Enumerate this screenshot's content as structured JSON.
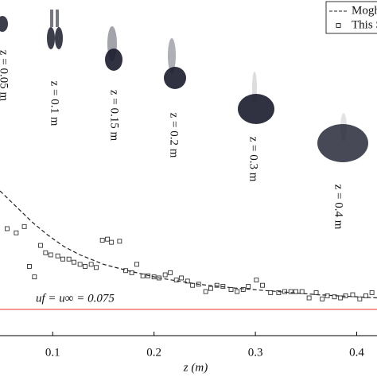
{
  "chart_data": {
    "type": "scatter",
    "xlabel": "z (m)",
    "xlim": [
      0.048,
      0.42
    ],
    "ylim": [
      0.05,
      0.37
    ],
    "xticks": [
      0.1,
      0.2,
      0.3,
      0.4
    ],
    "hline": {
      "value": 0.075,
      "color": "#e8332a"
    },
    "annotation": "uf = u∞ = 0.075",
    "plume_labels": [
      "z = 0.05 m",
      "z = 0.1 m",
      "z = 0.15 m",
      "z = 0.2 m",
      "z = 0.3 m",
      "z = 0.4 m"
    ],
    "series": [
      {
        "name": "Mogha",
        "type": "line",
        "color": "#222",
        "x": [
          0.048,
          0.064,
          0.08,
          0.095,
          0.111,
          0.127,
          0.15,
          0.174,
          0.205,
          0.244,
          0.284,
          0.323,
          0.362,
          0.42
        ],
        "values": [
          0.188,
          0.173,
          0.158,
          0.146,
          0.135,
          0.127,
          0.118,
          0.112,
          0.105,
          0.099,
          0.095,
          0.092,
          0.089,
          0.086
        ]
      },
      {
        "name": "This S",
        "type": "scatter",
        "color": "#333",
        "x": [
          0.055,
          0.064,
          0.072,
          0.077,
          0.082,
          0.088,
          0.093,
          0.098,
          0.105,
          0.11,
          0.116,
          0.121,
          0.127,
          0.132,
          0.138,
          0.143,
          0.149,
          0.154,
          0.158,
          0.166,
          0.172,
          0.178,
          0.183,
          0.189,
          0.194,
          0.2,
          0.205,
          0.211,
          0.216,
          0.222,
          0.227,
          0.233,
          0.238,
          0.244,
          0.251,
          0.256,
          0.262,
          0.268,
          0.276,
          0.282,
          0.288,
          0.293,
          0.301,
          0.307,
          0.315,
          0.323,
          0.329,
          0.335,
          0.34,
          0.346,
          0.353,
          0.36,
          0.366,
          0.371,
          0.378,
          0.384,
          0.389,
          0.396,
          0.403,
          0.409,
          0.415
        ],
        "values": [
          0.152,
          0.148,
          0.154,
          0.116,
          0.106,
          0.136,
          0.129,
          0.127,
          0.126,
          0.123,
          0.123,
          0.12,
          0.118,
          0.116,
          0.118,
          0.115,
          0.141,
          0.142,
          0.139,
          0.14,
          0.112,
          0.11,
          0.118,
          0.107,
          0.107,
          0.106,
          0.105,
          0.108,
          0.11,
          0.103,
          0.105,
          0.102,
          0.098,
          0.099,
          0.092,
          0.095,
          0.098,
          0.097,
          0.094,
          0.092,
          0.094,
          0.097,
          0.103,
          0.098,
          0.091,
          0.091,
          0.092,
          0.092,
          0.092,
          0.092,
          0.086,
          0.091,
          0.085,
          0.088,
          0.087,
          0.086,
          0.088,
          0.089,
          0.085,
          0.088,
          0.091
        ]
      }
    ]
  }
}
